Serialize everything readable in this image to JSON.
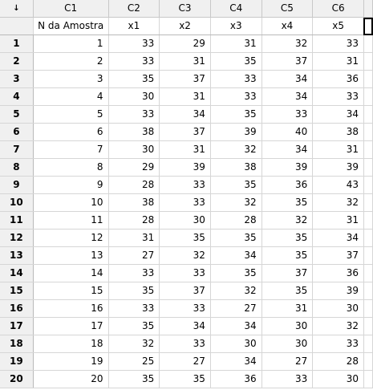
{
  "corner_label": "↓",
  "columns": [
    {
      "id": "C1",
      "name": "N da Amostra"
    },
    {
      "id": "C2",
      "name": "x1"
    },
    {
      "id": "C3",
      "name": "x2"
    },
    {
      "id": "C4",
      "name": "x3"
    },
    {
      "id": "C5",
      "name": "x4"
    },
    {
      "id": "C6",
      "name": "x5"
    }
  ],
  "rows": [
    {
      "row": "1",
      "cells": [
        "1",
        "33",
        "29",
        "31",
        "32",
        "33"
      ]
    },
    {
      "row": "2",
      "cells": [
        "2",
        "33",
        "31",
        "35",
        "37",
        "31"
      ]
    },
    {
      "row": "3",
      "cells": [
        "3",
        "35",
        "37",
        "33",
        "34",
        "36"
      ]
    },
    {
      "row": "4",
      "cells": [
        "4",
        "30",
        "31",
        "33",
        "34",
        "33"
      ]
    },
    {
      "row": "5",
      "cells": [
        "5",
        "33",
        "34",
        "35",
        "33",
        "34"
      ]
    },
    {
      "row": "6",
      "cells": [
        "6",
        "38",
        "37",
        "39",
        "40",
        "38"
      ]
    },
    {
      "row": "7",
      "cells": [
        "7",
        "30",
        "31",
        "32",
        "34",
        "31"
      ]
    },
    {
      "row": "8",
      "cells": [
        "8",
        "29",
        "39",
        "38",
        "39",
        "39"
      ]
    },
    {
      "row": "9",
      "cells": [
        "9",
        "28",
        "33",
        "35",
        "36",
        "43"
      ]
    },
    {
      "row": "10",
      "cells": [
        "10",
        "38",
        "33",
        "32",
        "35",
        "32"
      ]
    },
    {
      "row": "11",
      "cells": [
        "11",
        "28",
        "30",
        "28",
        "32",
        "31"
      ]
    },
    {
      "row": "12",
      "cells": [
        "12",
        "31",
        "35",
        "35",
        "35",
        "34"
      ]
    },
    {
      "row": "13",
      "cells": [
        "13",
        "27",
        "32",
        "34",
        "35",
        "37"
      ]
    },
    {
      "row": "14",
      "cells": [
        "14",
        "33",
        "33",
        "35",
        "37",
        "36"
      ]
    },
    {
      "row": "15",
      "cells": [
        "15",
        "35",
        "37",
        "32",
        "35",
        "39"
      ]
    },
    {
      "row": "16",
      "cells": [
        "16",
        "33",
        "33",
        "27",
        "31",
        "30"
      ]
    },
    {
      "row": "17",
      "cells": [
        "17",
        "35",
        "34",
        "34",
        "30",
        "32"
      ]
    },
    {
      "row": "18",
      "cells": [
        "18",
        "32",
        "33",
        "30",
        "30",
        "33"
      ]
    },
    {
      "row": "19",
      "cells": [
        "19",
        "25",
        "27",
        "34",
        "27",
        "28"
      ]
    },
    {
      "row": "20",
      "cells": [
        "20",
        "35",
        "35",
        "36",
        "33",
        "30"
      ]
    }
  ]
}
